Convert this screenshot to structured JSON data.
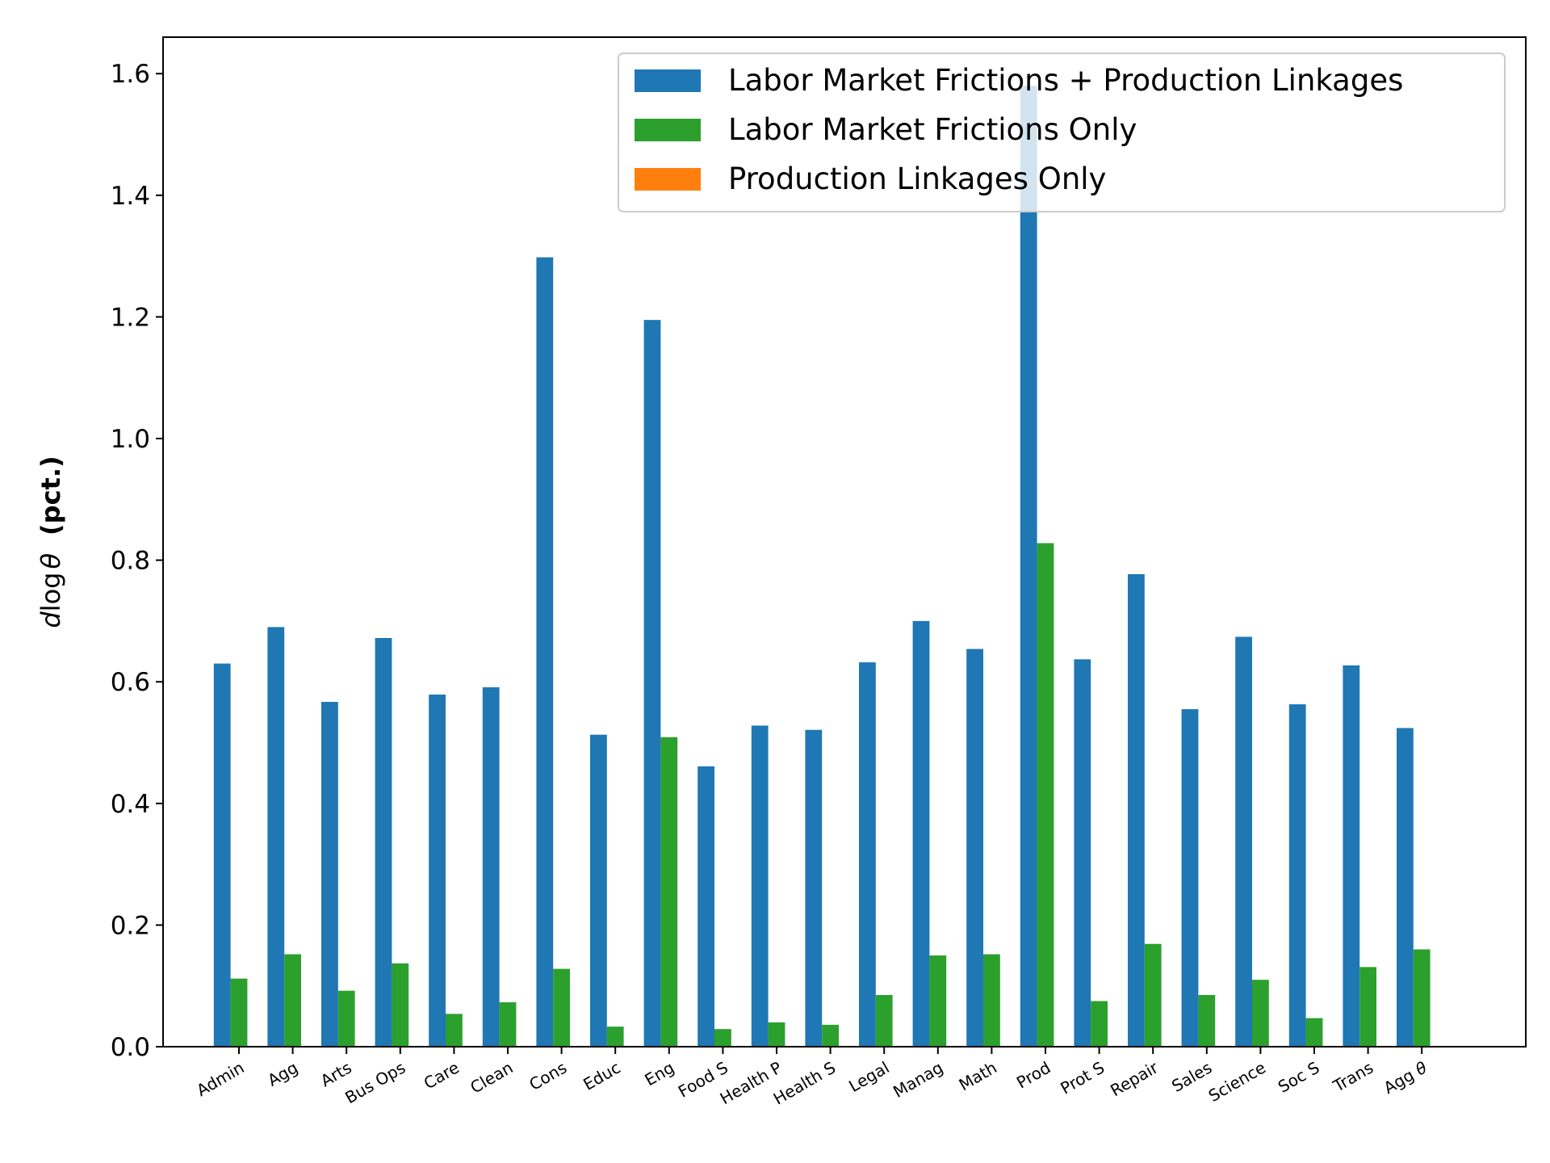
{
  "chart_data": {
    "type": "bar",
    "title": "",
    "xlabel": "",
    "ylabel_prefix": "d",
    "ylabel_log": "log",
    "ylabel_theta": "θ",
    "ylabel_unit": "(pct.)",
    "ylim": [
      0,
      1.66
    ],
    "yticks": [
      "0.0",
      "0.2",
      "0.4",
      "0.6",
      "0.8",
      "1.0",
      "1.2",
      "1.4",
      "1.6"
    ],
    "ytick_values": [
      0,
      0.2,
      0.4,
      0.6,
      0.8,
      1.0,
      1.2,
      1.4,
      1.6
    ],
    "categories": [
      "Admin",
      "Agg",
      "Arts",
      "Bus Ops",
      "Care",
      "Clean",
      "Cons",
      "Educ",
      "Eng",
      "Food S",
      "Health P",
      "Health S",
      "Legal",
      "Manag",
      "Math",
      "Prod",
      "Prot S",
      "Repair",
      "Sales",
      "Science",
      "Soc S",
      "Trans",
      "Agg θ"
    ],
    "legend_position": "top-right",
    "series": [
      {
        "name": "Labor Market Frictions + Production Linkages",
        "color": "#1f77b4",
        "values": [
          0.63,
          0.69,
          0.567,
          0.672,
          0.579,
          0.591,
          1.298,
          0.513,
          1.195,
          0.461,
          0.528,
          0.521,
          0.632,
          0.7,
          0.654,
          1.58,
          0.637,
          0.777,
          0.555,
          0.674,
          0.563,
          0.627,
          0.524
        ]
      },
      {
        "name": "Labor Market Frictions Only",
        "color": "#2ca02c",
        "values": [
          0.112,
          0.152,
          0.092,
          0.137,
          0.054,
          0.073,
          0.128,
          0.033,
          0.509,
          0.029,
          0.04,
          0.036,
          0.085,
          0.15,
          0.152,
          0.828,
          0.075,
          0.169,
          0.085,
          0.11,
          0.047,
          0.131,
          0.16
        ]
      },
      {
        "name": "Production Linkages Only",
        "color": "#ff7f0e",
        "values": [
          0,
          0,
          0,
          0,
          0,
          0,
          0,
          0,
          0,
          0,
          0,
          0,
          0,
          0,
          0,
          0,
          0,
          0,
          0,
          0,
          0,
          0,
          0
        ]
      }
    ]
  }
}
